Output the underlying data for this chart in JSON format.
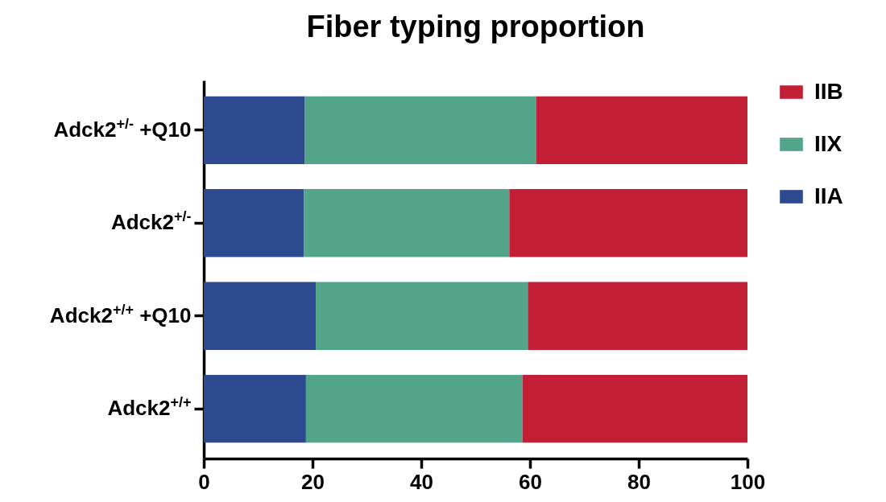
{
  "chart_data": {
    "type": "bar",
    "title": "Fiber typing proportion",
    "orientation": "horizontal",
    "stacked": true,
    "categories": [
      "Adck2$^{+/-}$ +Q10",
      "Adck2$^{+/-}$",
      "Adck2$^{+/+}$ +Q10",
      "Adck2$^{+/+}$"
    ],
    "series": [
      {
        "name": "IIA",
        "color": "#2d4a90",
        "values": [
          18.6,
          18.4,
          20.6,
          18.8
        ]
      },
      {
        "name": "IIX",
        "color": "#52a589",
        "values": [
          42.5,
          37.8,
          39.0,
          39.8
        ]
      },
      {
        "name": "IIB",
        "color": "#c21e35",
        "values": [
          38.9,
          43.8,
          40.4,
          41.4
        ]
      }
    ],
    "xlim": [
      0,
      100
    ],
    "xticks": [
      0,
      20,
      40,
      60,
      80,
      100
    ],
    "grid": false,
    "legend": "top right"
  }
}
